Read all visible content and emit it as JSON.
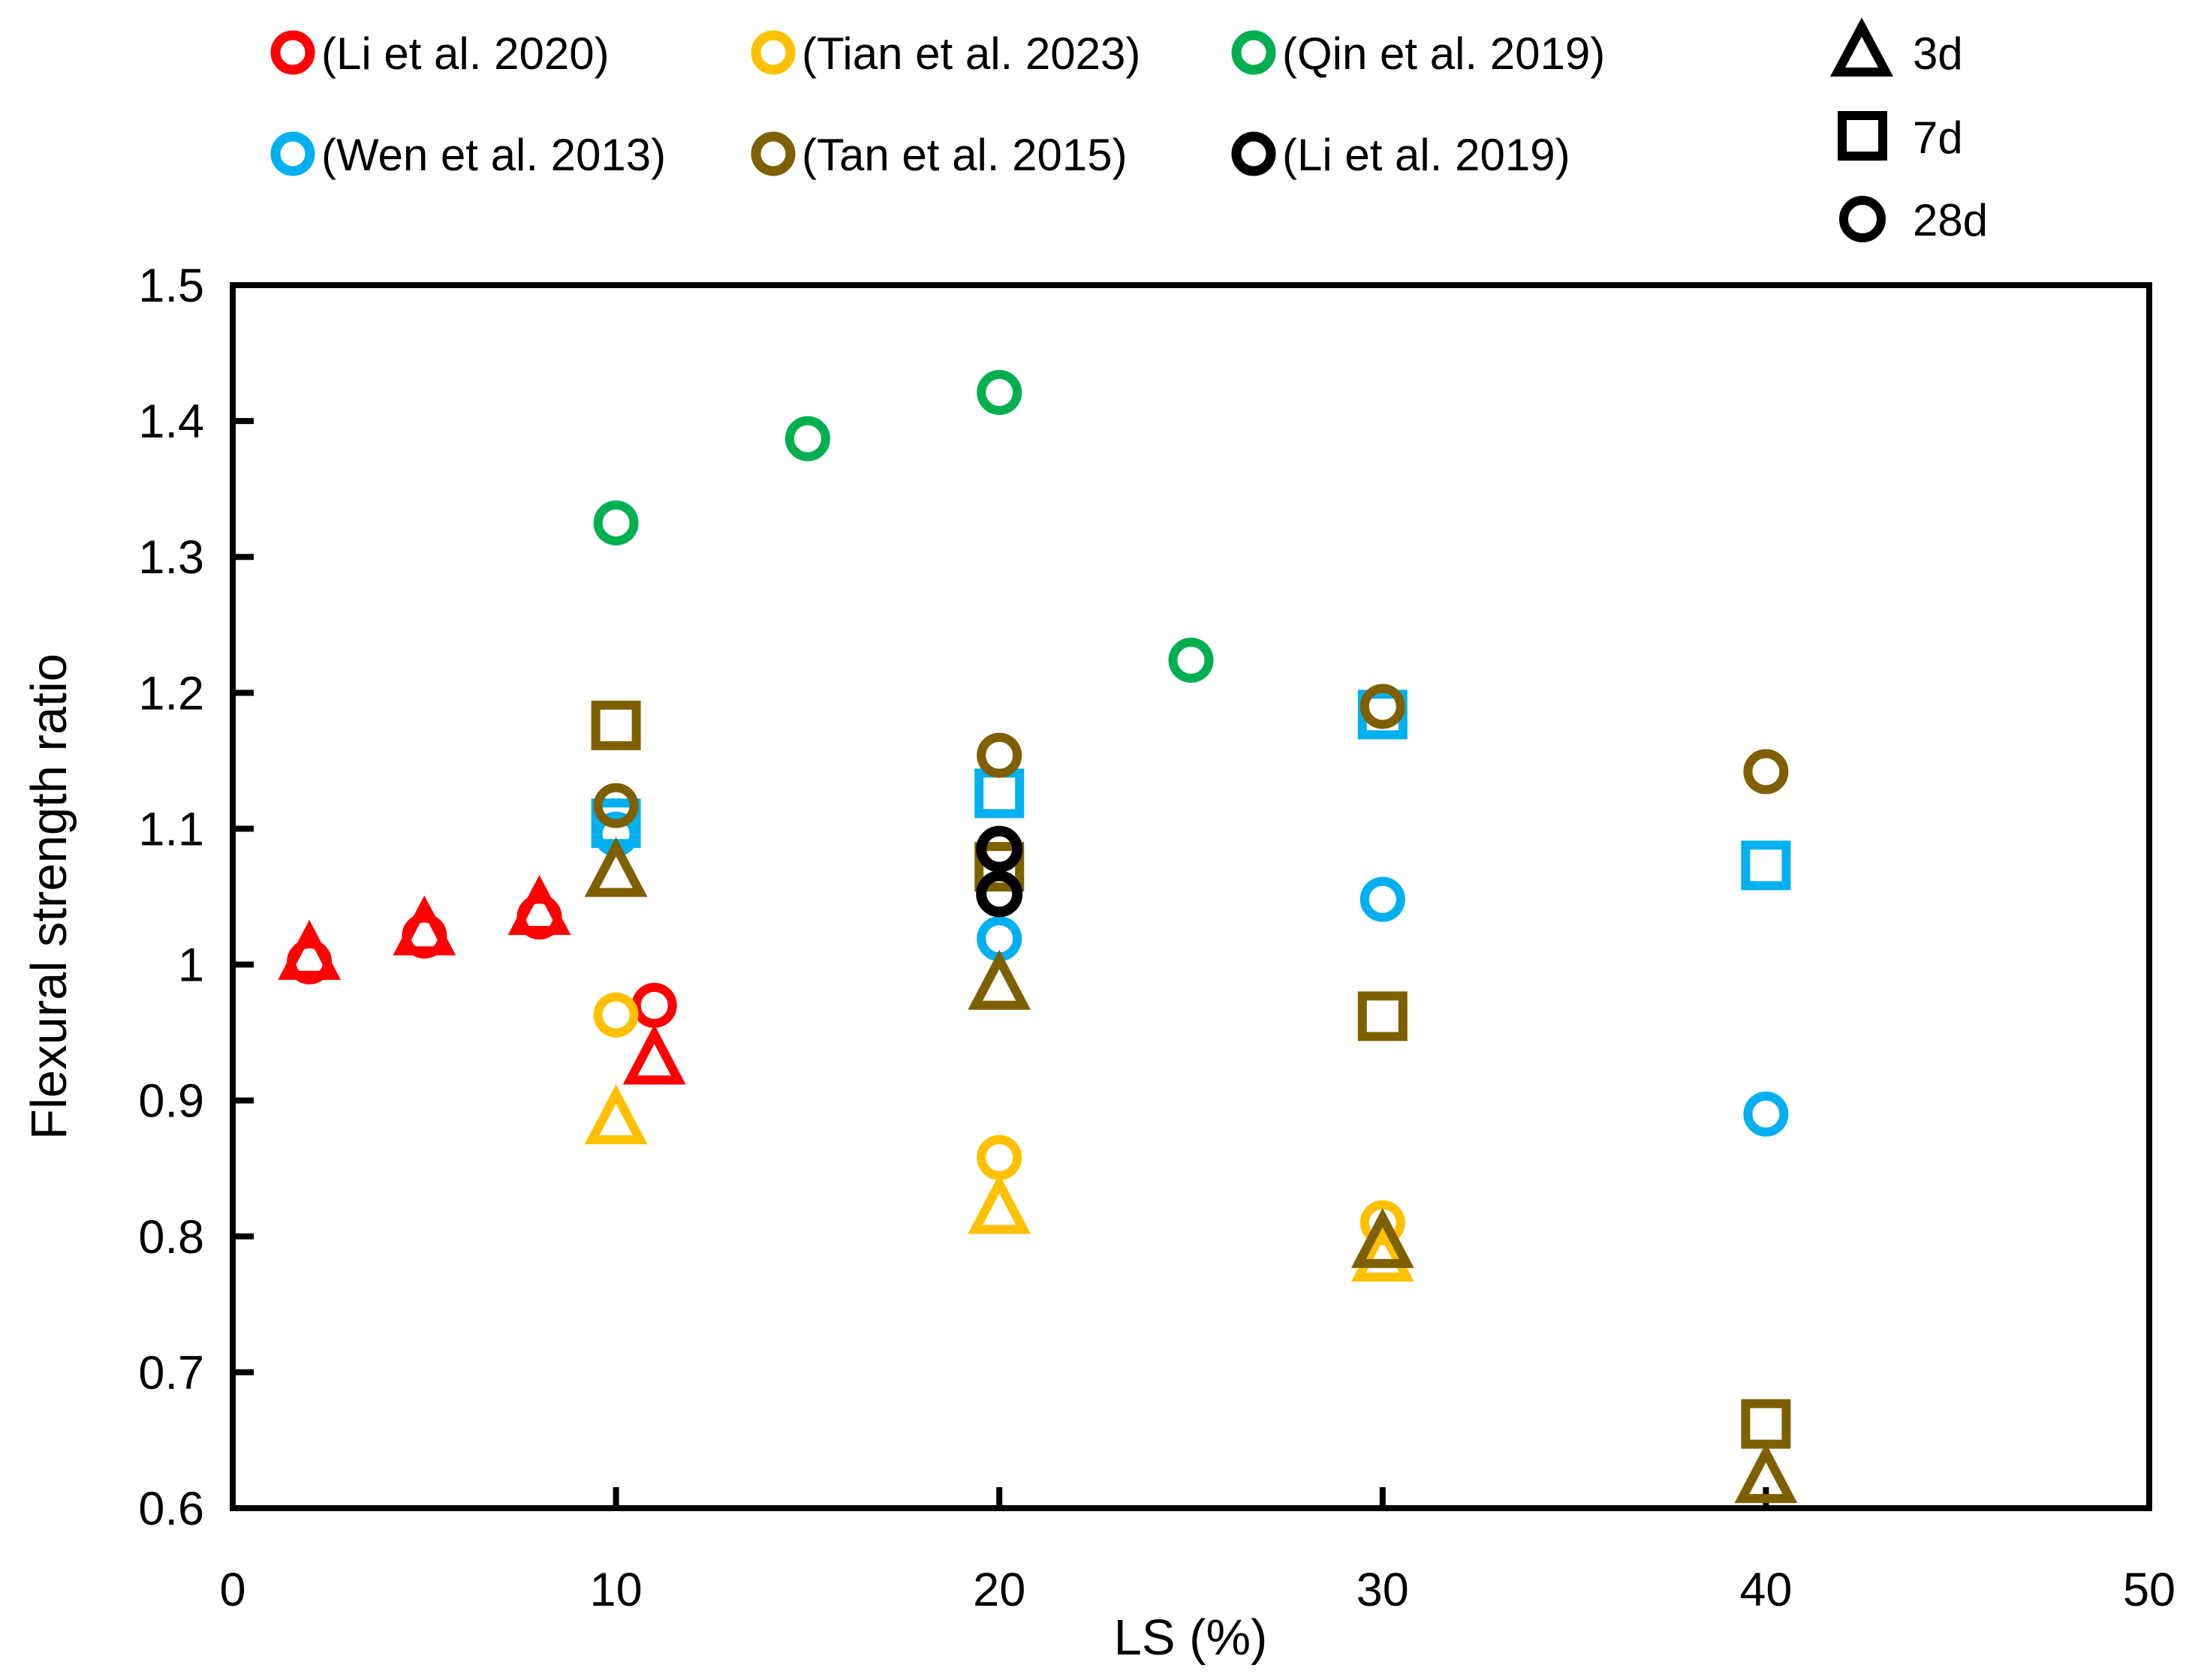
{
  "figure": {
    "background": "#FFFFFF"
  },
  "legend": {
    "studies": [
      {
        "label": "(Li et al. 2020)",
        "color": "#FF0000"
      },
      {
        "label": "(Tian et al. 2023)",
        "color": "#FFC000"
      },
      {
        "label": "(Qin et al. 2019)",
        "color": "#00B050"
      },
      {
        "label": "(Wen et al. 2013)",
        "color": "#00B0F0"
      },
      {
        "label": "(Tan et al. 2015)",
        "color": "#7F6000"
      },
      {
        "label": "(Li et al. 2019)",
        "color": "#000000"
      }
    ],
    "ages": [
      {
        "label": "3d",
        "marker": "triangle"
      },
      {
        "label": "7d",
        "marker": "square"
      },
      {
        "label": "28d",
        "marker": "circle"
      }
    ],
    "age_marker_color": "#000000"
  },
  "chart_data": {
    "type": "scatter",
    "title": "",
    "xlabel": "LS (%)",
    "ylabel": "Flexural strength ratio",
    "xlim": [
      0,
      50
    ],
    "ylim": [
      0.6,
      1.5
    ],
    "x_ticks": [
      "0",
      "10",
      "20",
      "30",
      "40",
      "50"
    ],
    "x_tick_values": [
      0,
      10,
      20,
      30,
      40,
      50
    ],
    "y_ticks": [
      "0.6",
      "0.7",
      "0.8",
      "0.9",
      "1",
      "1.1",
      "1.2",
      "1.3",
      "1.4",
      "1.5"
    ],
    "y_tick_values": [
      0.6,
      0.7,
      0.8,
      0.9,
      1.0,
      1.1,
      1.2,
      1.3,
      1.4,
      1.5
    ],
    "grid": false,
    "legend_position": "top",
    "marker_meaning": {
      "triangle": "3d",
      "square": "7d",
      "circle": "28d"
    },
    "series": [
      {
        "study": "(Li et al. 2020)",
        "age": "28d",
        "marker": "circle",
        "color": "#FF0000",
        "points": [
          [
            2,
            1.002
          ],
          [
            5,
            1.021
          ],
          [
            8,
            1.035
          ],
          [
            11,
            0.97
          ]
        ]
      },
      {
        "study": "(Li et al. 2020)",
        "age": "3d",
        "marker": "triangle",
        "color": "#FF0000",
        "points": [
          [
            2,
            1.007
          ],
          [
            5,
            1.025
          ],
          [
            8,
            1.04
          ],
          [
            11,
            0.93
          ]
        ]
      },
      {
        "study": "(Tian et al. 2023)",
        "age": "28d",
        "marker": "circle",
        "color": "#FFC000",
        "points": [
          [
            10,
            0.963
          ],
          [
            20,
            0.858
          ],
          [
            30,
            0.81
          ]
        ]
      },
      {
        "study": "(Tian et al. 2023)",
        "age": "3d",
        "marker": "triangle",
        "color": "#FFC000",
        "points": [
          [
            10,
            0.886
          ],
          [
            20,
            0.82
          ],
          [
            30,
            0.785
          ]
        ]
      },
      {
        "study": "(Qin et al. 2019)",
        "age": "28d",
        "marker": "circle",
        "color": "#00B050",
        "points": [
          [
            10,
            1.325
          ],
          [
            15,
            1.387
          ],
          [
            20,
            1.421
          ],
          [
            25,
            1.224
          ]
        ]
      },
      {
        "study": "(Wen et al. 2013)",
        "age": "7d",
        "marker": "square",
        "color": "#00B0F0",
        "points": [
          [
            10,
            1.104
          ],
          [
            20,
            1.126
          ],
          [
            30,
            1.184
          ],
          [
            40,
            1.073
          ]
        ]
      },
      {
        "study": "(Wen et al. 2013)",
        "age": "28d",
        "marker": "circle",
        "color": "#00B0F0",
        "points": [
          [
            10,
            1.096
          ],
          [
            20,
            1.019
          ],
          [
            30,
            1.048
          ],
          [
            40,
            0.89
          ]
        ]
      },
      {
        "study": "(Tan et al. 2015)",
        "age": "3d",
        "marker": "triangle",
        "color": "#7F6000",
        "points": [
          [
            10,
            1.068
          ],
          [
            20,
            0.985
          ],
          [
            30,
            0.795
          ],
          [
            40,
            0.622
          ]
        ]
      },
      {
        "study": "(Tan et al. 2015)",
        "age": "7d",
        "marker": "square",
        "color": "#7F6000",
        "points": [
          [
            10,
            1.176
          ],
          [
            20,
            1.072
          ],
          [
            30,
            0.962
          ],
          [
            40,
            0.662
          ]
        ]
      },
      {
        "study": "(Tan et al. 2015)",
        "age": "28d",
        "marker": "circle",
        "color": "#7F6000",
        "points": [
          [
            10,
            1.117
          ],
          [
            20,
            1.154
          ],
          [
            30,
            1.19
          ],
          [
            40,
            1.142
          ]
        ]
      },
      {
        "study": "(Li et al. 2019)",
        "age": "28d",
        "marker": "circle",
        "color": "#000000",
        "points": [
          [
            20,
            1.085
          ],
          [
            20,
            1.052
          ]
        ]
      }
    ]
  }
}
